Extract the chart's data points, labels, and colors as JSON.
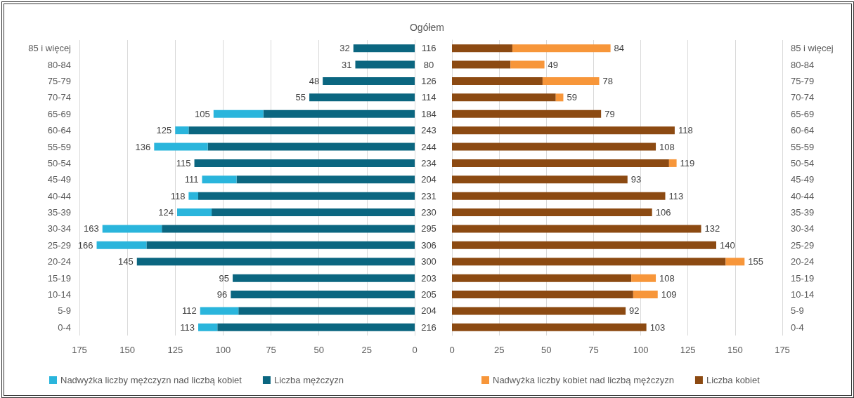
{
  "chart_data": [
    {
      "type": "bar",
      "title": "Ogółem",
      "orientation": "horizontal",
      "stacked": true,
      "categories": [
        "85 i więcej",
        "80-84",
        "75-79",
        "70-74",
        "65-69",
        "60-64",
        "55-59",
        "50-54",
        "45-49",
        "40-44",
        "35-39",
        "30-34",
        "25-29",
        "20-24",
        "15-19",
        "10-14",
        "5-9",
        "0-4"
      ],
      "series": [
        {
          "name": "Liczba mężczyzn",
          "color": "#0b6680",
          "values": [
            32,
            31,
            48,
            55,
            79,
            118,
            108,
            115,
            93,
            113,
            106,
            132,
            140,
            145,
            95,
            96,
            92,
            103
          ]
        },
        {
          "name": "Nadwyżka liczby mężczyzn nad liczbą kobiet",
          "color": "#2ab5dc",
          "values": [
            0,
            0,
            0,
            0,
            26,
            7,
            28,
            0,
            18,
            5,
            18,
            31,
            26,
            0,
            0,
            0,
            20,
            10
          ]
        }
      ],
      "totals": [
        "32",
        "31",
        "48",
        "55",
        "105",
        "125",
        "136",
        "115",
        "111",
        "118",
        "124",
        "163",
        "166",
        "145",
        "95",
        "96",
        "112",
        "113"
      ],
      "xlim": [
        175,
        0
      ],
      "xticks": [
        0,
        25,
        50,
        75,
        100,
        125,
        150,
        175
      ],
      "grid": "x",
      "legend": "bottom"
    },
    {
      "type": "bar",
      "orientation": "horizontal",
      "stacked": true,
      "categories": [
        "85 i więcej",
        "80-84",
        "75-79",
        "70-74",
        "65-69",
        "60-64",
        "55-59",
        "50-54",
        "45-49",
        "40-44",
        "35-39",
        "30-34",
        "25-29",
        "20-24",
        "15-19",
        "10-14",
        "5-9",
        "0-4"
      ],
      "series": [
        {
          "name": "Liczba kobiet",
          "color": "#8c4a12",
          "values": [
            32,
            31,
            48,
            55,
            79,
            118,
            108,
            115,
            93,
            113,
            106,
            132,
            140,
            145,
            95,
            96,
            92,
            103
          ]
        },
        {
          "name": "Nadwyżka liczby kobiet nad liczbą mężczyzn",
          "color": "#f7963a",
          "values": [
            52,
            18,
            30,
            4,
            0,
            0,
            0,
            4,
            0,
            0,
            0,
            0,
            0,
            10,
            13,
            13,
            0,
            0
          ]
        }
      ],
      "totals": [
        "84",
        "49",
        "78",
        "59",
        "79",
        "118",
        "108",
        "119",
        "93",
        "113",
        "106",
        "132",
        "140",
        "155",
        "108",
        "109",
        "92",
        "103"
      ],
      "annotations": [
        "116",
        "80",
        "126",
        "114",
        "184",
        "243",
        "244",
        "234",
        "204",
        "231",
        "230",
        "295",
        "306",
        "300",
        "203",
        "205",
        "204",
        "216"
      ],
      "xlim": [
        0,
        175
      ],
      "xticks": [
        0,
        25,
        50,
        75,
        100,
        125,
        150,
        175
      ],
      "grid": "x",
      "legend": "bottom"
    }
  ]
}
